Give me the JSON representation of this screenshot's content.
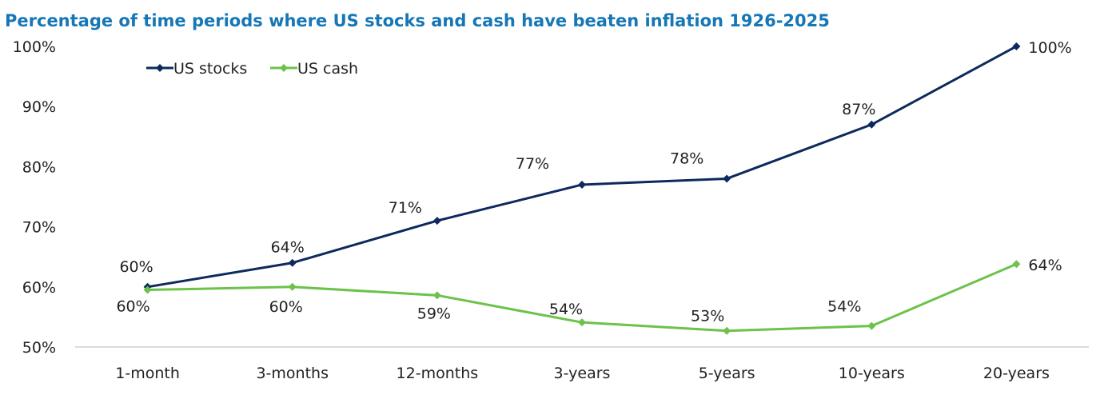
{
  "chart_data": {
    "type": "line",
    "title": "Percentage of time periods where US stocks and cash have beaten inflation 1926-2025",
    "categories": [
      "1-month",
      "3-months",
      "12-months",
      "3-years",
      "5-years",
      "10-years",
      "20-years"
    ],
    "ylim": [
      50,
      100
    ],
    "yticks": [
      "50%",
      "60%",
      "70%",
      "80%",
      "90%",
      "100%"
    ],
    "legend_position": "top-left",
    "grid": false,
    "series": [
      {
        "name": "US stocks",
        "color": "#0e2a5c",
        "values": [
          60,
          64,
          71,
          77,
          78,
          87,
          100
        ],
        "labels": [
          "60%",
          "64%",
          "71%",
          "77%",
          "78%",
          "87%",
          "100%"
        ]
      },
      {
        "name": "US cash",
        "color": "#6cc24a",
        "values": [
          59.5,
          60,
          58.6,
          54.1,
          52.7,
          53.5,
          63.8
        ],
        "labels": [
          "60%",
          "60%",
          "59%",
          "54%",
          "53%",
          "54%",
          "64%"
        ]
      }
    ],
    "title_color": "#1577b5",
    "axis_color": "#d0d0d0"
  }
}
